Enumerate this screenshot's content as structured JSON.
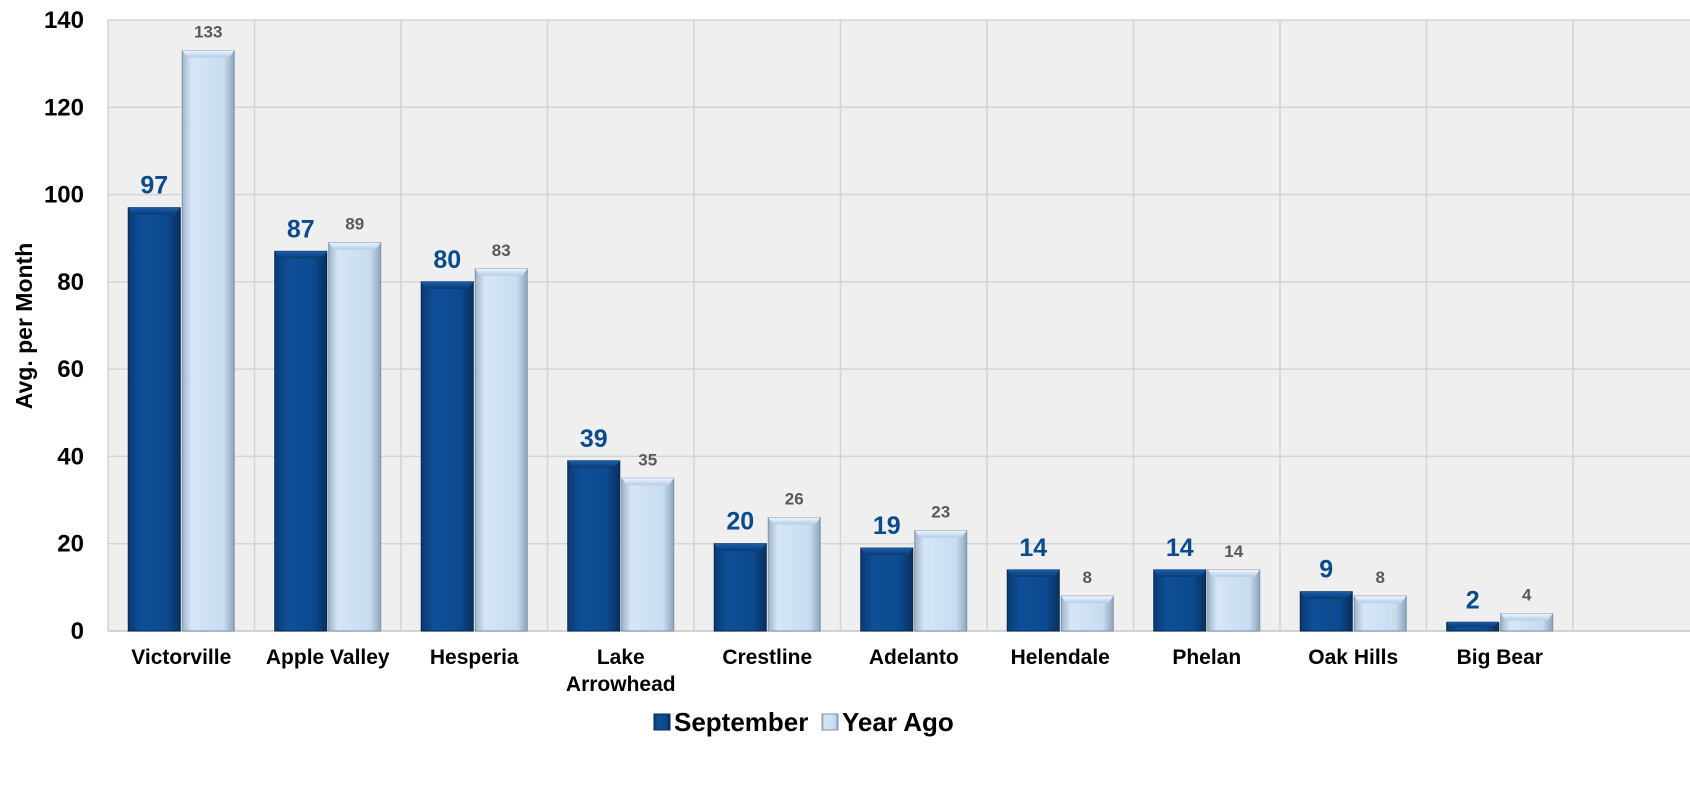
{
  "chart_data": {
    "type": "bar",
    "title": "",
    "xlabel": "",
    "ylabel": "Avg. per Month",
    "ylim": [
      0,
      140
    ],
    "yticks": [
      0,
      20,
      40,
      60,
      80,
      100,
      120,
      140
    ],
    "grid": true,
    "legend_position": "bottom",
    "categories": [
      [
        "Victorville"
      ],
      [
        "Apple Valley"
      ],
      [
        "Hesperia"
      ],
      [
        "Lake",
        "Arrowhead"
      ],
      [
        "Crestline"
      ],
      [
        "Adelanto"
      ],
      [
        "Helendale"
      ],
      [
        "Phelan"
      ],
      [
        "Oak Hills"
      ],
      [
        "Big Bear"
      ]
    ],
    "series": [
      {
        "name": "September",
        "color": "#0d4a8f",
        "label_color": "#0b4a8c",
        "values": [
          97,
          87,
          80,
          39,
          20,
          19,
          14,
          14,
          9,
          2
        ],
        "labels": [
          "97",
          "87",
          "80",
          "39",
          "20",
          "19",
          "14",
          "14",
          "9",
          "2"
        ]
      },
      {
        "name": "Year Ago",
        "color": "#c9def3",
        "label_color": "#595959",
        "values": [
          133,
          89,
          83,
          35,
          26,
          23,
          8,
          14,
          8,
          4
        ],
        "labels": [
          "133",
          "89",
          "83",
          "35",
          "26",
          "23",
          "8",
          "14",
          "8",
          "4"
        ]
      }
    ]
  }
}
